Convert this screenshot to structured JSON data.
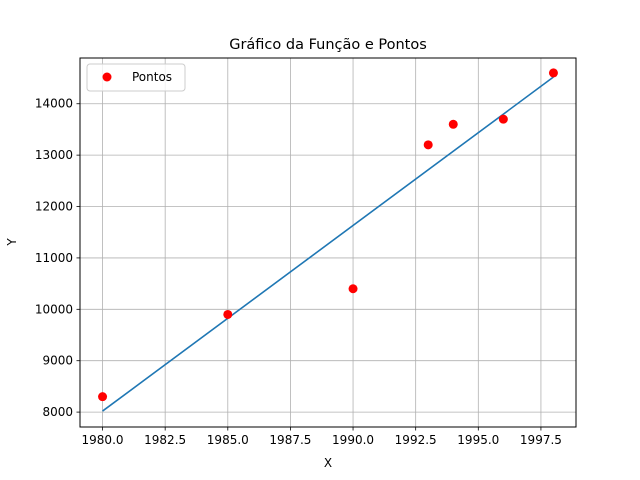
{
  "chart_data": {
    "type": "scatter",
    "title": "Gráfico da Função e Pontos",
    "xlabel": "X",
    "ylabel": "Y",
    "xlim": [
      1979.1,
      1998.9
    ],
    "ylim": [
      7710,
      14890
    ],
    "grid": true,
    "legend_placement": "top-left",
    "x_ticks": [
      1980.0,
      1982.5,
      1985.0,
      1987.5,
      1990.0,
      1992.5,
      1995.0,
      1997.5
    ],
    "x_tick_labels": [
      "1980.0",
      "1982.5",
      "1985.0",
      "1987.5",
      "1990.0",
      "1992.5",
      "1995.0",
      "1997.5"
    ],
    "y_ticks": [
      8000,
      9000,
      10000,
      11000,
      12000,
      13000,
      14000
    ],
    "y_tick_labels": [
      "8000",
      "9000",
      "10000",
      "11000",
      "12000",
      "13000",
      "14000"
    ],
    "series": [
      {
        "name": "Pontos",
        "kind": "scatter",
        "color": "#ff0000",
        "x": [
          1980,
          1985,
          1990,
          1993,
          1994,
          1996,
          1998
        ],
        "y": [
          8300,
          9900,
          10400,
          13200,
          13600,
          13700,
          14600
        ]
      },
      {
        "kind": "line",
        "color": "#1f77b4",
        "x": [
          1980,
          1998
        ],
        "y": [
          8020,
          14520
        ]
      }
    ]
  }
}
